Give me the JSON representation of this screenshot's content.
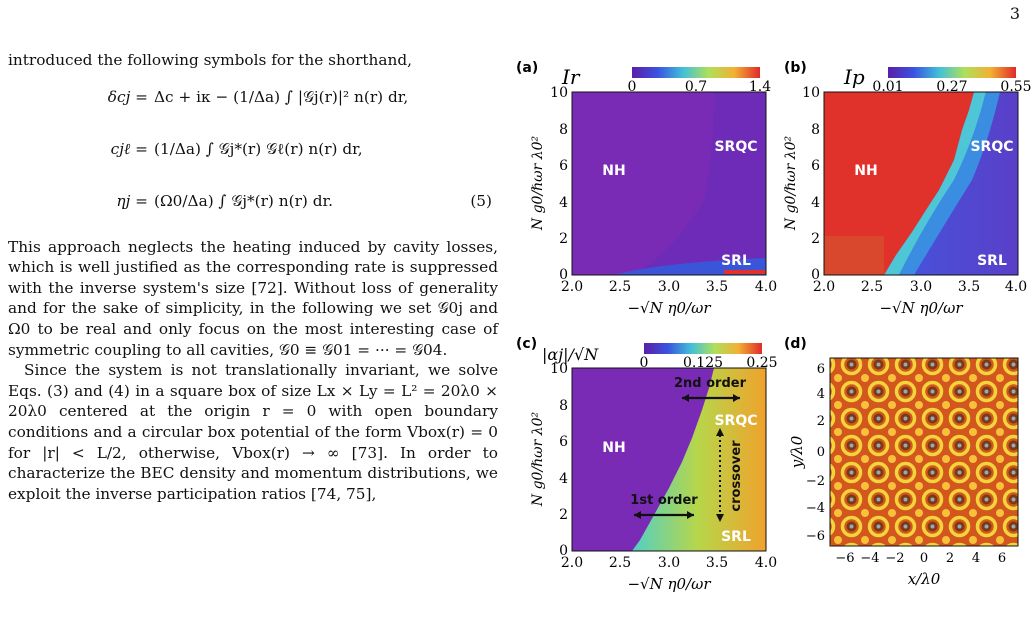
{
  "page_number": "3",
  "intro_line": "introduced the following symbols for the shorthand,",
  "equations": {
    "eq1_lhs": "δcj =",
    "eq1_rhs": "Δc + iκ − (1/Δa) ∫ |𝒢j(r)|² n(r) dr,",
    "eq2_lhs": "cjℓ =",
    "eq2_rhs": "(1/Δa) ∫ 𝒢j*(r) 𝒢ℓ(r) n(r) dr,",
    "eq3_lhs": "ηj =",
    "eq3_rhs": "(Ω0/Δa) ∫ 𝒢j*(r) n(r) dr.",
    "eq_number": "(5)"
  },
  "paragraph1": "This approach neglects the heating induced by cavity losses, which is well justified as the corresponding rate is suppressed with the inverse system's size [72]. Without loss of generality and for the sake of simplicity, in the following we set 𝒢0j and Ω0 to be real and only focus on the most interesting case of symmetric coupling to all cavities, 𝒢0 ≡ 𝒢01 = ··· = 𝒢04.",
  "paragraph2": "Since the system is not translationally invariant, we solve Eqs. (3) and (4) in a square box of size Lx × Ly = L² = 20λ0 × 20λ0 centered at the origin r = 0 with open boundary conditions and a circular box potential of the form Vbox(r) = 0 for |r| < L/2, otherwise, Vbox(r) → ∞ [73]. In order to characterize the BEC density and momentum distributions, we exploit the inverse participation ratios [74, 75],",
  "figure": {
    "panels": {
      "a": {
        "label": "(a)",
        "colorbar_title": "Ir",
        "colorbar_ticks": [
          "0",
          "0.7",
          "1.4"
        ],
        "regions": [
          "NH",
          "SRQC",
          "SRL"
        ]
      },
      "b": {
        "label": "(b)",
        "colorbar_title": "Ip",
        "colorbar_ticks": [
          "0.01",
          "0.27",
          "0.55"
        ],
        "regions": [
          "NH",
          "SRQC",
          "SRL"
        ]
      },
      "c": {
        "label": "(c)",
        "colorbar_title": "|αj|/√N",
        "colorbar_ticks": [
          "0",
          "0.125",
          "0.25"
        ],
        "regions": [
          "NH",
          "SRQC",
          "SRL"
        ],
        "annotations": [
          "2nd order",
          "1st order",
          "crossover"
        ]
      },
      "d": {
        "label": "(d)",
        "x_ticks": [
          "−6",
          "−4",
          "−2",
          "0",
          "2",
          "4",
          "6"
        ],
        "y_ticks": [
          "6",
          "4",
          "2",
          "0",
          "−2",
          "−4",
          "−6"
        ],
        "xlabel": "x/λ0",
        "ylabel": "y/λ0"
      }
    },
    "phase_x_ticks": [
      "2.0",
      "2.5",
      "3.0",
      "3.5",
      "4.0"
    ],
    "phase_y_ticks": [
      "10",
      "8",
      "6",
      "4",
      "2",
      "0"
    ],
    "phase_xlabel": "−√N η0/ωr",
    "phase_ylabel": "N g0/ℏωr λ0²",
    "colors": {
      "purple": "#7a2bb6",
      "red": "#e0312a",
      "blue": "#3a63e0",
      "cyan": "#4fc6d6",
      "yellow": "#d4c72c",
      "orange": "#e98a2a"
    }
  }
}
